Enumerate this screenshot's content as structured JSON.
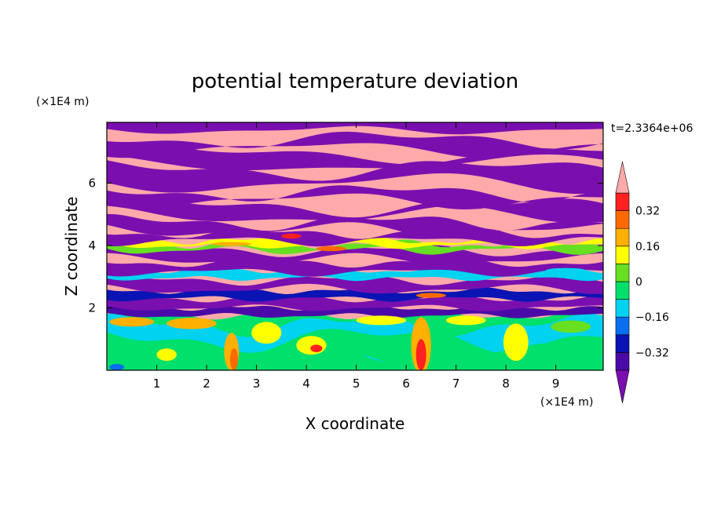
{
  "chart_data": {
    "type": "heatmap",
    "title": "potential temperature deviation",
    "xlabel": "X coordinate",
    "ylabel": "Z coordinate",
    "x_unit": "(×1E4 m)",
    "y_unit": "(×1E4 m)",
    "time_label": "t=2.3364e+06",
    "xlim": [
      0,
      9.95
    ],
    "ylim": [
      0,
      7.95
    ],
    "x_ticks": [
      1,
      2,
      3,
      4,
      5,
      6,
      7,
      8,
      9
    ],
    "y_ticks": [
      2,
      4,
      6
    ],
    "colorbar": {
      "levels": [
        -0.4,
        -0.32,
        -0.24,
        -0.16,
        -0.08,
        0,
        0.08,
        0.16,
        0.24,
        0.32,
        0.4
      ],
      "colors": [
        "#7a0fb0",
        "#4b0aa8",
        "#0a14b4",
        "#0a6ef0",
        "#00d2f0",
        "#00e06a",
        "#66e020",
        "#ffff00",
        "#ffb000",
        "#ff6a00",
        "#ff2020",
        "#ffaaaa"
      ],
      "tick_labels": [
        "0.32",
        "0.16",
        "0",
        "−0.16",
        "−0.32"
      ],
      "tick_values": [
        0.32,
        0.16,
        0,
        -0.16,
        -0.32
      ],
      "extend": "both"
    },
    "regions": [
      {
        "z_range": [
          0,
          1.8
        ],
        "description_values": "mostly -0.1 to 0.2 (cyan/green/yellow) with orange/red plumes"
      },
      {
        "z_range": [
          1.8,
          4.8
        ],
        "description_values": "banded layers alternating -0.4 (purple) and +0.4 (pink)"
      },
      {
        "z_range": [
          4.8,
          7.95
        ],
        "description_values": "large alternating layers of > 0.4 (pink) and < -0.4 (purple)"
      }
    ]
  }
}
